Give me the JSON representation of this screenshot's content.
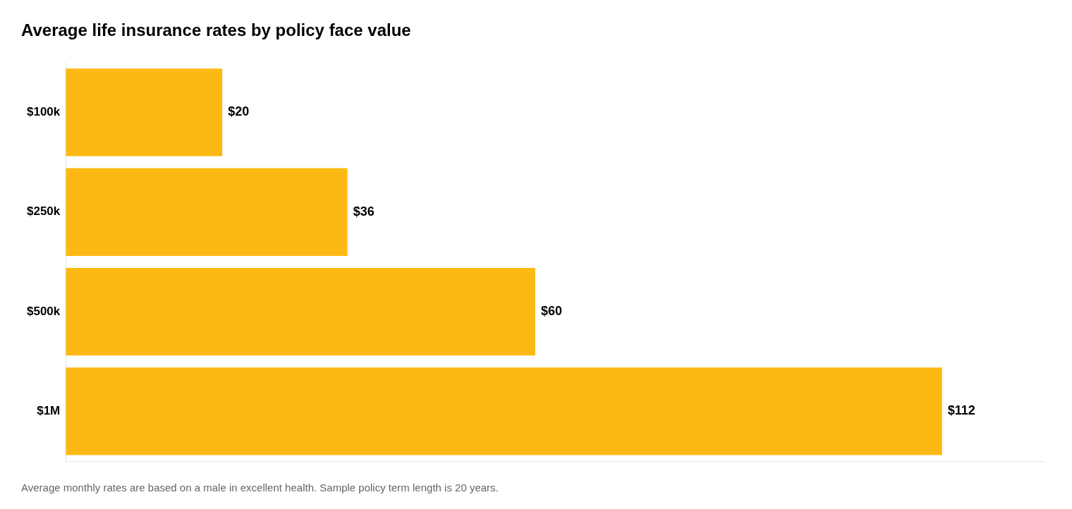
{
  "chart_data": {
    "type": "bar",
    "orientation": "horizontal",
    "title": "Average life insurance rates by policy face value",
    "footnote": "Average monthly rates are based on a male in excellent health. Sample policy term length is 20 years.",
    "categories": [
      "$100k",
      "$250k",
      "$500k",
      "$1M"
    ],
    "values": [
      20,
      36,
      60,
      112
    ],
    "value_labels": [
      "$20",
      "$36",
      "$60",
      "$112"
    ],
    "data_labels": true,
    "color": "#FDB913",
    "xlim": [
      0,
      125
    ],
    "grid": false,
    "tick_labels": "y"
  }
}
